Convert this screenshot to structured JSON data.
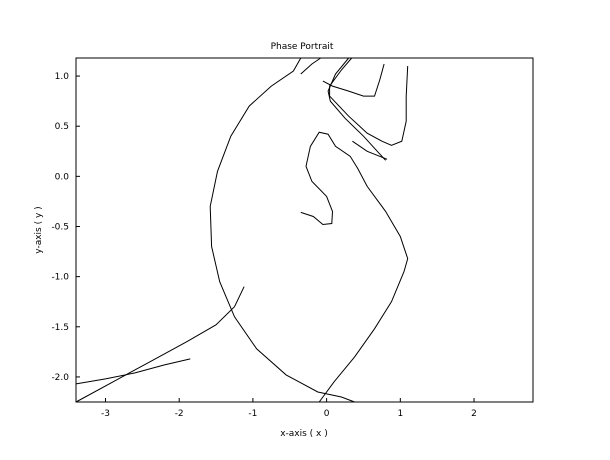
{
  "chart_data": {
    "type": "line",
    "title": "Phase Portrait",
    "xlabel": "x-axis ( x )",
    "ylabel": "y-axis ( y )",
    "xlim": [
      -3.4,
      2.8
    ],
    "ylim": [
      -2.25,
      1.18
    ],
    "xticks": [
      -3,
      -2,
      -1,
      0,
      1,
      2
    ],
    "xtick_labels": [
      "-3",
      "-2",
      "-1",
      "0",
      "1",
      "2"
    ],
    "yticks": [
      1.0,
      0.5,
      0.0,
      -0.5,
      -1.0,
      -1.5,
      -2.0
    ],
    "ytick_labels": [
      "1.0",
      "0.5",
      "0.0",
      "-0.5",
      "-1.0",
      "-1.5",
      "-2.0"
    ],
    "grid": false,
    "series": [
      {
        "points": [
          [
            -0.35,
            1.18
          ],
          [
            -0.45,
            1.05
          ],
          [
            -0.75,
            0.9
          ],
          [
            -1.05,
            0.7
          ],
          [
            -1.3,
            0.4
          ],
          [
            -1.48,
            0.05
          ],
          [
            -1.58,
            -0.3
          ],
          [
            -1.56,
            -0.7
          ],
          [
            -1.45,
            -1.05
          ],
          [
            -1.25,
            -1.4
          ],
          [
            -0.95,
            -1.72
          ],
          [
            -0.55,
            -1.98
          ],
          [
            -0.12,
            -2.15
          ],
          [
            0.2,
            -2.2
          ],
          [
            0.38,
            -2.25
          ]
        ]
      },
      {
        "points": [
          [
            -0.1,
            -2.25
          ],
          [
            0.1,
            -2.05
          ],
          [
            0.38,
            -1.8
          ],
          [
            0.65,
            -1.52
          ],
          [
            0.88,
            -1.25
          ],
          [
            1.05,
            -0.95
          ],
          [
            1.1,
            -0.82
          ],
          [
            1.0,
            -0.6
          ],
          [
            0.8,
            -0.35
          ],
          [
            0.55,
            -0.1
          ],
          [
            0.42,
            0.08
          ],
          [
            0.32,
            0.2
          ],
          [
            0.12,
            0.3
          ],
          [
            0.02,
            0.42
          ],
          [
            -0.1,
            0.44
          ],
          [
            -0.22,
            0.3
          ],
          [
            -0.28,
            0.1
          ],
          [
            -0.2,
            -0.05
          ],
          [
            0.0,
            -0.2
          ],
          [
            0.08,
            -0.35
          ],
          [
            0.07,
            -0.47
          ],
          [
            -0.05,
            -0.48
          ],
          [
            -0.18,
            -0.4
          ],
          [
            -0.35,
            -0.36
          ]
        ]
      },
      {
        "points": [
          [
            -3.4,
            -2.07
          ],
          [
            -3.0,
            -2.02
          ],
          [
            -2.6,
            -1.96
          ],
          [
            -2.2,
            -1.88
          ],
          [
            -1.85,
            -1.82
          ]
        ]
      },
      {
        "points": [
          [
            -3.4,
            -2.25
          ],
          [
            -2.9,
            -2.05
          ],
          [
            -2.4,
            -1.85
          ],
          [
            -1.9,
            -1.65
          ],
          [
            -1.5,
            -1.48
          ],
          [
            -1.25,
            -1.3
          ],
          [
            -1.12,
            -1.1
          ]
        ]
      },
      {
        "points": [
          [
            -0.35,
            1.02
          ],
          [
            -0.2,
            1.12
          ],
          [
            -0.08,
            1.18
          ]
        ]
      },
      {
        "points": [
          [
            0.3,
            1.18
          ],
          [
            0.12,
            1.02
          ],
          [
            0.02,
            0.85
          ],
          [
            0.05,
            0.75
          ],
          [
            0.25,
            0.58
          ],
          [
            0.5,
            0.4
          ],
          [
            0.7,
            0.24
          ],
          [
            0.8,
            0.16
          ]
        ]
      },
      {
        "points": [
          [
            0.34,
            1.18
          ],
          [
            0.2,
            1.06
          ],
          [
            0.04,
            0.9
          ],
          [
            0.04,
            0.8
          ],
          [
            0.3,
            0.6
          ],
          [
            0.55,
            0.43
          ],
          [
            0.75,
            0.35
          ],
          [
            0.88,
            0.31
          ],
          [
            1.02,
            0.35
          ],
          [
            1.08,
            0.55
          ],
          [
            1.08,
            0.8
          ],
          [
            1.1,
            1.1
          ]
        ]
      },
      {
        "points": [
          [
            0.78,
            1.12
          ],
          [
            0.72,
            0.96
          ],
          [
            0.65,
            0.8
          ],
          [
            0.5,
            0.8
          ],
          [
            0.3,
            0.85
          ],
          [
            0.08,
            0.9
          ],
          [
            -0.05,
            0.95
          ]
        ]
      },
      {
        "points": [
          [
            0.35,
            0.35
          ],
          [
            0.55,
            0.25
          ],
          [
            0.72,
            0.2
          ],
          [
            0.82,
            0.17
          ]
        ]
      }
    ]
  }
}
